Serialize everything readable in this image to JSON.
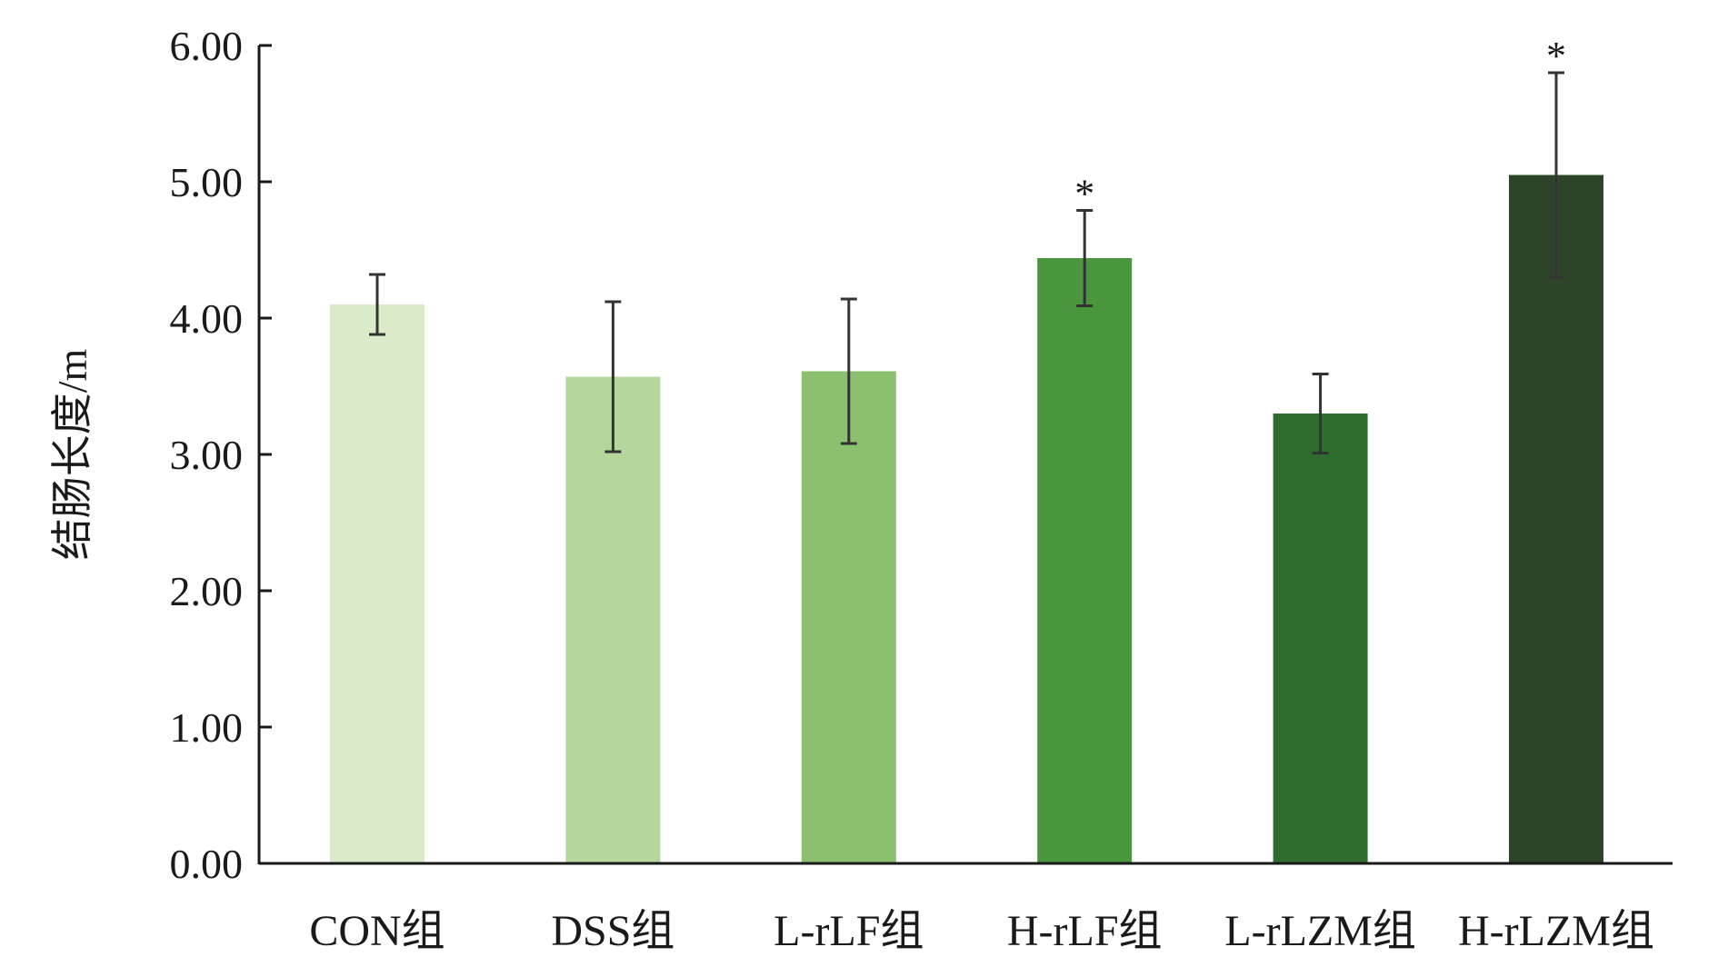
{
  "chart_data": {
    "type": "bar",
    "title": "",
    "xlabel": "",
    "ylabel": "结肠长度/m",
    "ylim": [
      0,
      6
    ],
    "yticks": [
      "0.00",
      "1.00",
      "2.00",
      "3.00",
      "4.00",
      "5.00",
      "6.00"
    ],
    "categories": [
      "CON组",
      "DSS组",
      "L-rLF组",
      "H-rLF组",
      "L-rLZM组",
      "H-rLZM组"
    ],
    "values": [
      4.1,
      3.57,
      3.61,
      4.44,
      3.3,
      5.05
    ],
    "errors": [
      0.22,
      0.55,
      0.53,
      0.35,
      0.29,
      0.75
    ],
    "significance": [
      "",
      "",
      "",
      "*",
      "",
      "*"
    ],
    "colors": [
      "#dbebc9",
      "#b5d79d",
      "#8bc06f",
      "#4a963d",
      "#2f6d2f",
      "#2d4429"
    ],
    "grid": false,
    "legend": "none"
  }
}
